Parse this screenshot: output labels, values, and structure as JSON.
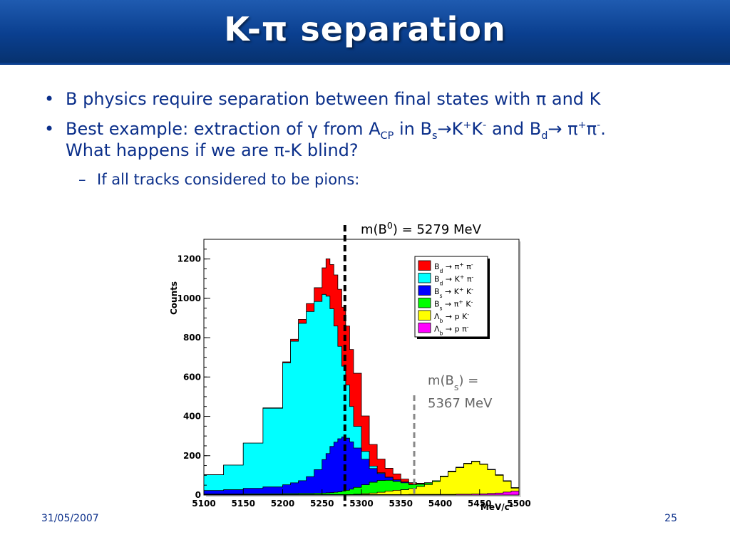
{
  "slide": {
    "title": "K-π separation",
    "bullets": {
      "b1": {
        "text": "B physics require separation between final states with π and K"
      },
      "b2": {
        "p1": "Best example: extraction of γ from A",
        "p1_sub": "CP",
        "p2": " in B",
        "p2_sub": "s",
        "p3": "→K",
        "p3_sup": "+",
        "p4": "K",
        "p4_sup": "-",
        "p5": " and B",
        "p5_sub": "d",
        "p6": "→ π",
        "p6_sup": "+",
        "p7": "π",
        "p7_sup": "-",
        "p8": ".",
        "line2": "What happens if we are π-K blind?"
      },
      "sub1": {
        "text": "If all tracks considered to be pions:"
      }
    },
    "footer": {
      "date": "31/05/2007",
      "page": "25"
    }
  },
  "annotations": {
    "b0": {
      "pre": "m(B",
      "sup": "0",
      "post": ") = 5279 MeV"
    },
    "bs": {
      "line1_pre": "m(B",
      "line1_sub": "s",
      "line1_post": ") =",
      "line2": "5367 MeV"
    }
  },
  "colors": {
    "title_bar": "#0a3f8f",
    "text": "#0b2f8a",
    "bd_pipi": "#ff0000",
    "bd_kpi": "#00ffff",
    "bs_kk": "#0000ff",
    "bs_pik": "#00ff00",
    "lb_pk": "#ffff00",
    "lb_ppi": "#ff00ff",
    "b0_line": "#000000",
    "bs_line": "#888888",
    "bs_text": "#666666"
  },
  "chart_data": {
    "type": "area",
    "stacked": true,
    "xlabel": "MeV/c²",
    "ylabel": "Counts",
    "xlim": [
      5100,
      5500
    ],
    "ylim": [
      0,
      1300
    ],
    "x_ticks": [
      "5100",
      "5150",
      "5200",
      "5250",
      "5300",
      "5350",
      "5400",
      "5450",
      "5500"
    ],
    "y_ticks": [
      "0",
      "200",
      "400",
      "600",
      "800",
      "1000",
      "1200"
    ],
    "x": [
      5100,
      5125,
      5150,
      5175,
      5200,
      5210,
      5220,
      5230,
      5240,
      5250,
      5255,
      5260,
      5265,
      5270,
      5275,
      5280,
      5285,
      5290,
      5300,
      5310,
      5320,
      5330,
      5340,
      5350,
      5360,
      5370,
      5380,
      5390,
      5400,
      5410,
      5420,
      5430,
      5440,
      5450,
      5460,
      5470,
      5480,
      5490,
      5500
    ],
    "series": [
      {
        "key": "lb_ppi",
        "name": "Λb → p π-",
        "legend_main": "Λ",
        "legend_sub": "b",
        "legend_arrow": "→ p π",
        "legend_sup": "-",
        "values": [
          2,
          2,
          2,
          2,
          2,
          2,
          2,
          2,
          2,
          2,
          2,
          2,
          2,
          2,
          2,
          2,
          2,
          2,
          2,
          2,
          2,
          2,
          2,
          2,
          3,
          3,
          3,
          3,
          3,
          3,
          4,
          4,
          5,
          6,
          8,
          10,
          15,
          20,
          20
        ]
      },
      {
        "key": "lb_pk",
        "name": "Λb → p K-",
        "legend_main": "Λ",
        "legend_sub": "b",
        "legend_arrow": "→ p K",
        "legend_sup": "-",
        "values": [
          0,
          0,
          0,
          0,
          0,
          0,
          0,
          0,
          0,
          0,
          0,
          0,
          0,
          0,
          0,
          0,
          0,
          2,
          5,
          8,
          12,
          18,
          22,
          25,
          30,
          40,
          50,
          65,
          90,
          115,
          135,
          155,
          165,
          150,
          120,
          90,
          55,
          15,
          5
        ]
      },
      {
        "key": "bs_pik",
        "name": "Bs → π+ K-",
        "legend_main": "B",
        "legend_sub": "s",
        "legend_arrow": "→ π",
        "legend_sup": "+",
        "legend_tail": " K",
        "legend_tail_sup": "-",
        "values": [
          3,
          3,
          4,
          4,
          5,
          5,
          6,
          6,
          7,
          8,
          9,
          10,
          12,
          14,
          18,
          22,
          28,
          35,
          45,
          55,
          60,
          55,
          45,
          35,
          20,
          12,
          8,
          5,
          3,
          3,
          2,
          2,
          2,
          2,
          2,
          2,
          2,
          2,
          2
        ]
      },
      {
        "key": "bs_kk",
        "name": "Bs → K+ K-",
        "legend_main": "B",
        "legend_sub": "s",
        "legend_arrow": "→ K",
        "legend_sup": "+",
        "legend_tail": " K",
        "legend_tail_sup": "-",
        "values": [
          18,
          22,
          28,
          35,
          45,
          55,
          65,
          85,
          120,
          170,
          200,
          235,
          255,
          270,
          275,
          265,
          240,
          200,
          130,
          70,
          35,
          15,
          8,
          4,
          2,
          1,
          0,
          0,
          0,
          0,
          0,
          0,
          0,
          0,
          0,
          0,
          0,
          0,
          0
        ]
      },
      {
        "key": "bd_kpi",
        "name": "Bd → K+ π-",
        "legend_main": "B",
        "legend_sub": "d",
        "legend_arrow": "→ K",
        "legend_sup": "+",
        "legend_tail": " π",
        "legend_tail_sup": "-",
        "values": [
          80,
          125,
          230,
          400,
          620,
          720,
          800,
          840,
          855,
          840,
          800,
          700,
          590,
          470,
          360,
          270,
          180,
          110,
          40,
          12,
          4,
          1,
          0,
          0,
          0,
          0,
          0,
          0,
          0,
          0,
          0,
          0,
          0,
          0,
          0,
          0,
          0,
          0,
          0
        ]
      },
      {
        "key": "bd_pipi",
        "name": "Bd → π+ π-",
        "legend_main": "B",
        "legend_sub": "d",
        "legend_arrow": "→ π",
        "legend_sup": "+",
        "legend_tail": " π",
        "legend_tail_sup": "-",
        "values": [
          0,
          0,
          0,
          2,
          5,
          10,
          20,
          40,
          70,
          135,
          190,
          225,
          260,
          290,
          300,
          300,
          290,
          270,
          180,
          110,
          70,
          45,
          30,
          15,
          8,
          4,
          2,
          0,
          0,
          0,
          0,
          0,
          0,
          0,
          0,
          0,
          0,
          0,
          0
        ]
      }
    ],
    "legend_order": [
      "bd_pipi",
      "bd_kpi",
      "bs_kk",
      "bs_pik",
      "lb_pk",
      "lb_ppi"
    ],
    "vlines": [
      {
        "x": 5279,
        "color_key": "b0_line"
      },
      {
        "x": 5367,
        "color_key": "bs_line"
      }
    ]
  }
}
